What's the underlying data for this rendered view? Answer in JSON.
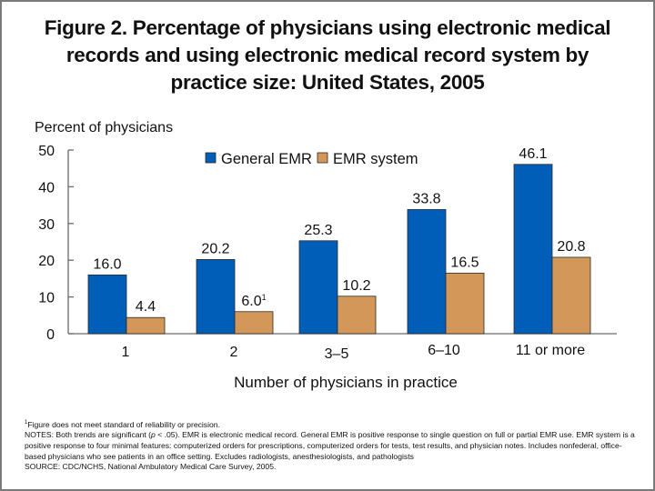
{
  "chart_data": {
    "type": "bar",
    "title": "Figure 2. Percentage of physicians using electronic medical records and using electronic medical record system by practice size: United States, 2005",
    "title_lines": [
      "Figure 2. Percentage of physicians using electronic medical",
      "records and using electronic medical record system by",
      "practice size: United States, 2005"
    ],
    "ylabel": "Percent of physicians",
    "xlabel": "Number of physicians in practice",
    "ylim": [
      0,
      50
    ],
    "yticks": [
      0,
      10,
      20,
      30,
      40,
      50
    ],
    "categories": [
      "1",
      "2",
      "3–5",
      "6–10",
      "11 or more"
    ],
    "series": [
      {
        "name": "General EMR",
        "color": "#005eb8",
        "values": [
          16.0,
          20.2,
          25.3,
          33.8,
          46.1
        ],
        "labels": [
          "16.0",
          "20.2",
          "25.3",
          "33.8",
          "46.1"
        ]
      },
      {
        "name": "EMR system",
        "color": "#d4975a",
        "values": [
          4.4,
          6.0,
          10.2,
          16.5,
          20.8
        ],
        "labels": [
          "4.4",
          "6.0",
          "10.2",
          "16.5",
          "20.8"
        ],
        "label_superscripts": [
          "",
          "1",
          "",
          "",
          ""
        ]
      }
    ],
    "legend": {
      "placement": "top-center"
    },
    "grid": false
  },
  "footnotes": {
    "footnote_mark": "1",
    "footnote_text": "Figure does not meet standard of reliability or precision.",
    "notes_prefix": "NOTES: Both trends are significant (",
    "notes_p": "p",
    "notes_rest": " < .05). EMR is electronic medical record. General EMR is positive response to single question on full or partial EMR use. EMR system is a positive response to four minimal features: computerized orders for prescriptions, computerized orders for tests, test results, and physician notes. Includes nonfederal, office-based physicians who see patients in an office setting. Excludes radiologists, anesthesiologists, and pathologists",
    "source": "SOURCE: CDC/NCHS, National Ambulatory Medical Care Survey, 2005."
  }
}
